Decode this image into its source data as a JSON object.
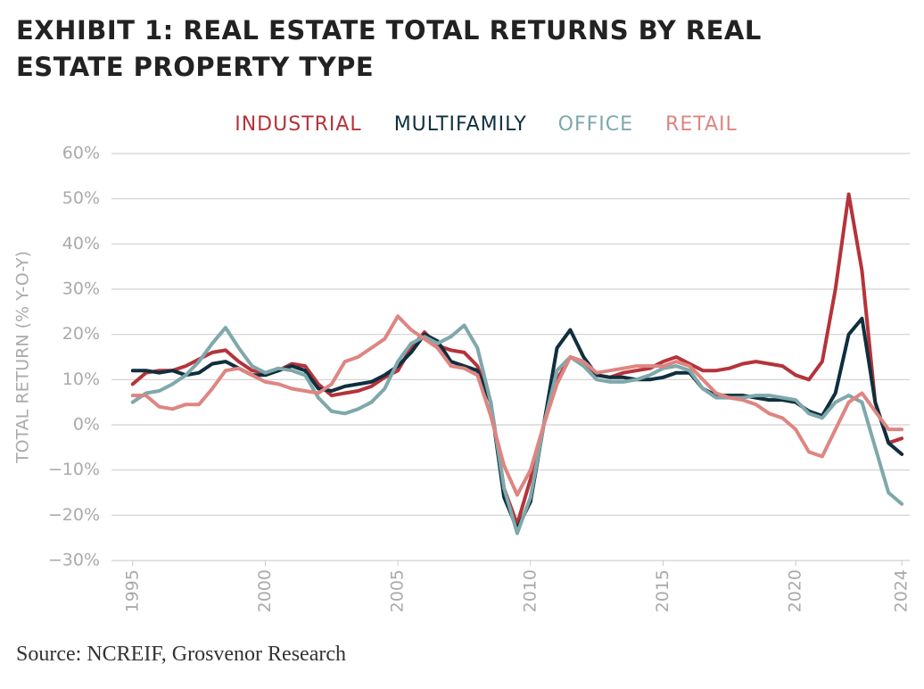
{
  "chart_data": {
    "type": "line",
    "title": "EXHIBIT 1: REAL ESTATE TOTAL RETURNS BY REAL ESTATE PROPERTY TYPE",
    "y_label": "TOTAL RETURN (% Y-O-Y)",
    "source": "Source: NCREIF, Grosvenor Research",
    "x": [
      1995,
      1995.5,
      1996,
      1996.5,
      1997,
      1997.5,
      1998,
      1998.5,
      1999,
      1999.5,
      2000,
      2000.5,
      2001,
      2001.5,
      2002,
      2002.5,
      2003,
      2003.5,
      2004,
      2004.5,
      2005,
      2005.5,
      2006,
      2006.5,
      2007,
      2007.5,
      2008,
      2008.5,
      2009,
      2009.5,
      2010,
      2010.5,
      2011,
      2011.5,
      2012,
      2012.5,
      2013,
      2013.5,
      2014,
      2014.5,
      2015,
      2015.5,
      2016,
      2016.5,
      2017,
      2017.5,
      2018,
      2018.5,
      2019,
      2019.5,
      2020,
      2020.5,
      2021,
      2021.5,
      2022,
      2022.5,
      2023,
      2023.5,
      2024
    ],
    "series": [
      {
        "name": "INDUSTRIAL",
        "color": "#b5333a",
        "values": [
          9,
          11.5,
          12,
          12,
          13,
          14.5,
          16,
          16.5,
          14,
          12,
          11.5,
          12,
          13.5,
          13,
          9,
          6.5,
          7,
          7.5,
          8.5,
          10.5,
          12,
          17,
          20.5,
          17.5,
          16.5,
          16,
          13,
          5,
          -14,
          -22,
          -12,
          0,
          10,
          15,
          14,
          11,
          10.5,
          11.5,
          12,
          12.5,
          14,
          15,
          13.5,
          12,
          12,
          12.5,
          13.5,
          14,
          13.5,
          13,
          11,
          10,
          14,
          30,
          51,
          34,
          5,
          -4,
          -3
        ]
      },
      {
        "name": "MULTIFAMILY",
        "color": "#0f2f3e",
        "values": [
          12,
          12,
          11.5,
          12,
          11,
          11.5,
          13.5,
          14,
          12.5,
          11,
          11,
          12,
          13,
          12,
          8,
          7.5,
          8.5,
          9,
          9.5,
          11,
          13,
          16,
          20,
          18.5,
          14,
          13,
          12,
          5,
          -16,
          -23,
          -17,
          0,
          17,
          21,
          15,
          11,
          10.5,
          10.5,
          10,
          10,
          10.5,
          11.5,
          11.5,
          8,
          6.5,
          6.5,
          6.5,
          6,
          5.5,
          5.5,
          5,
          3,
          2,
          7,
          20,
          23.5,
          5,
          -4,
          -6.5
        ]
      },
      {
        "name": "OFFICE",
        "color": "#7fa8ab",
        "values": [
          5,
          7,
          7.5,
          9,
          11,
          14,
          18,
          21.5,
          17,
          13,
          11.5,
          12.5,
          12,
          11,
          6,
          3,
          2.5,
          3.5,
          5,
          8,
          14,
          18,
          19.5,
          18,
          19.5,
          22,
          17,
          5,
          -14,
          -24,
          -16,
          0,
          12,
          15,
          13,
          10,
          9.5,
          9.5,
          10,
          11,
          12.5,
          13,
          12,
          8,
          6,
          6,
          6,
          6.5,
          6.5,
          6,
          5.5,
          2.5,
          1.5,
          5,
          6.5,
          5,
          -5,
          -15,
          -17.5
        ]
      },
      {
        "name": "RETAIL",
        "color": "#de8582",
        "values": [
          6.5,
          6.5,
          4,
          3.5,
          4.5,
          4.5,
          8,
          12,
          12.5,
          11,
          9.5,
          9,
          8,
          7.5,
          7,
          9,
          14,
          15,
          17,
          19,
          24,
          21,
          19,
          17,
          13,
          12.5,
          11,
          2,
          -9,
          -15.5,
          -10,
          0,
          9,
          15,
          14,
          11.5,
          12,
          12.5,
          13,
          13,
          13,
          14,
          13,
          10,
          7,
          6,
          5.5,
          4.5,
          2.5,
          1.5,
          -1,
          -6,
          -7,
          -1,
          5,
          7,
          3,
          -1,
          -1
        ]
      }
    ],
    "xlim": [
      1994.2,
      2024.3
    ],
    "xticks": [
      1995,
      2000,
      2005,
      2010,
      2015,
      2020,
      2024
    ],
    "ylim": [
      -30,
      60
    ],
    "yticks": [
      {
        "value": -30,
        "label": "−30%"
      },
      {
        "value": -20,
        "label": "−20%"
      },
      {
        "value": -10,
        "label": "−10%"
      },
      {
        "value": 0,
        "label": "0%"
      },
      {
        "value": 10,
        "label": "10%"
      },
      {
        "value": 20,
        "label": "20%"
      },
      {
        "value": 30,
        "label": "30%"
      },
      {
        "value": 40,
        "label": "40%"
      },
      {
        "value": 50,
        "label": "50%"
      },
      {
        "value": 60,
        "label": "60%"
      }
    ],
    "grid": true,
    "legend": "top"
  }
}
